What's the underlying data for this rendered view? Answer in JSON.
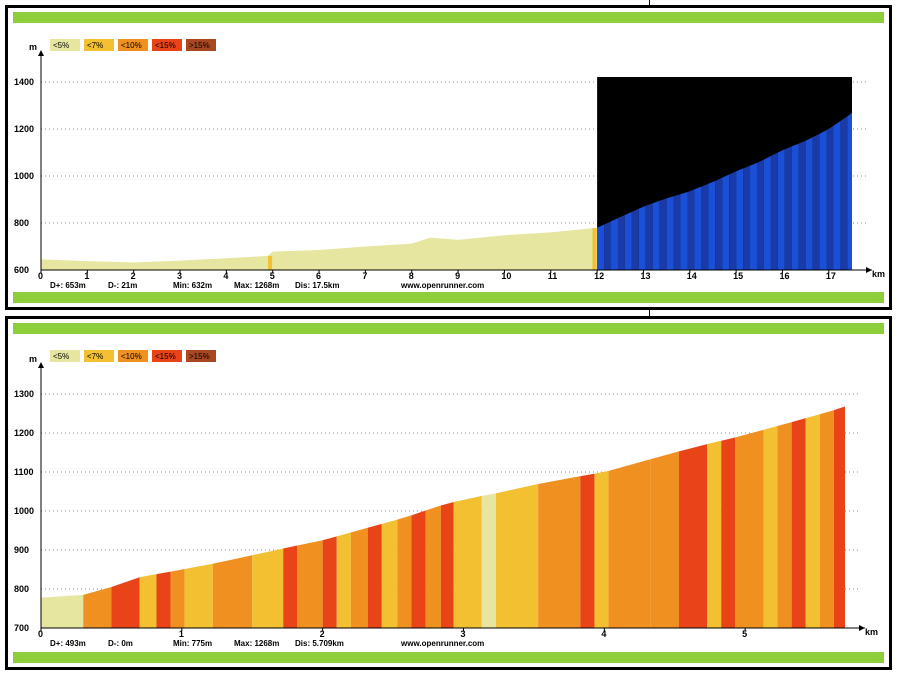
{
  "legend": [
    {
      "label": "<5%",
      "color": "#e6e6a0"
    },
    {
      "label": "<7%",
      "color": "#f2c030"
    },
    {
      "label": "<10%",
      "color": "#f09020"
    },
    {
      "label": "<15%",
      "color": "#e84418"
    },
    {
      "label": ">15%",
      "color": "#a84820"
    }
  ],
  "website": "www.openrunner.com",
  "chart_data": [
    {
      "type": "area",
      "y_unit": "m",
      "x_unit": "km",
      "ylim": [
        600,
        1400
      ],
      "yticks": [
        600,
        800,
        1000,
        1200,
        1400
      ],
      "xlim": [
        0,
        17.5
      ],
      "xticks": [
        0,
        1,
        2,
        3,
        4,
        5,
        6,
        7,
        8,
        9,
        10,
        11,
        12,
        13,
        14,
        15,
        16,
        17
      ],
      "stats": {
        "dplus": "D+: 653m",
        "dminus": "D-: 21m",
        "min": "Min: 632m",
        "max": "Max: 1268m",
        "dist": "Dis: 17.5km"
      },
      "profile": [
        [
          0,
          645
        ],
        [
          1,
          638
        ],
        [
          2,
          632
        ],
        [
          3,
          640
        ],
        [
          4,
          650
        ],
        [
          4.9,
          660
        ],
        [
          5,
          678
        ],
        [
          6,
          685
        ],
        [
          7,
          700
        ],
        [
          8,
          712
        ],
        [
          8.4,
          738
        ],
        [
          9,
          728
        ],
        [
          10,
          748
        ],
        [
          11,
          760
        ],
        [
          12,
          780
        ],
        [
          12.5,
          825
        ],
        [
          13,
          870
        ],
        [
          13.5,
          905
        ],
        [
          14,
          935
        ],
        [
          14.5,
          975
        ],
        [
          15,
          1020
        ],
        [
          15.5,
          1060
        ],
        [
          16,
          1110
        ],
        [
          16.5,
          1150
        ],
        [
          17,
          1200
        ],
        [
          17.5,
          1268
        ]
      ],
      "highlight": {
        "from": 12,
        "to": 17.5
      }
    },
    {
      "type": "area",
      "y_unit": "m",
      "x_unit": "km",
      "ylim": [
        700,
        1300
      ],
      "yticks": [
        700,
        800,
        900,
        1000,
        1100,
        1200,
        1300
      ],
      "xlim": [
        0,
        5.709
      ],
      "xticks": [
        0,
        1,
        2,
        3,
        4,
        5
      ],
      "stats": {
        "dplus": "D+: 493m",
        "dminus": "D-: 0m",
        "min": "Min: 775m",
        "max": "Max: 1268m",
        "dist": "Dis: 5.709km"
      },
      "profile": [
        [
          0,
          778
        ],
        [
          0.3,
          785
        ],
        [
          0.5,
          805
        ],
        [
          0.7,
          830
        ],
        [
          1,
          850
        ],
        [
          1.3,
          870
        ],
        [
          1.6,
          895
        ],
        [
          2,
          925
        ],
        [
          2.3,
          955
        ],
        [
          2.6,
          985
        ],
        [
          2.8,
          1010
        ],
        [
          3,
          1030
        ],
        [
          3.3,
          1050
        ],
        [
          3.6,
          1075
        ],
        [
          4,
          1100
        ],
        [
          4.3,
          1130
        ],
        [
          4.6,
          1160
        ],
        [
          5,
          1195
        ],
        [
          5.3,
          1225
        ],
        [
          5.6,
          1255
        ],
        [
          5.709,
          1268
        ]
      ],
      "segments": [
        [
          0,
          0.3,
          0
        ],
        [
          0.3,
          0.5,
          2
        ],
        [
          0.5,
          0.7,
          3
        ],
        [
          0.7,
          0.82,
          1
        ],
        [
          0.82,
          0.92,
          3
        ],
        [
          0.92,
          1.02,
          2
        ],
        [
          1.02,
          1.22,
          1
        ],
        [
          1.22,
          1.5,
          2
        ],
        [
          1.5,
          1.72,
          1
        ],
        [
          1.72,
          1.82,
          3
        ],
        [
          1.82,
          2.0,
          2
        ],
        [
          2.0,
          2.1,
          3
        ],
        [
          2.1,
          2.2,
          1
        ],
        [
          2.2,
          2.32,
          2
        ],
        [
          2.32,
          2.42,
          3
        ],
        [
          2.42,
          2.53,
          1
        ],
        [
          2.53,
          2.63,
          2
        ],
        [
          2.63,
          2.73,
          3
        ],
        [
          2.73,
          2.84,
          2
        ],
        [
          2.84,
          2.93,
          3
        ],
        [
          2.93,
          3.13,
          1
        ],
        [
          3.13,
          3.23,
          0
        ],
        [
          3.23,
          3.53,
          1
        ],
        [
          3.53,
          3.83,
          2
        ],
        [
          3.83,
          3.93,
          3
        ],
        [
          3.93,
          4.03,
          1
        ],
        [
          4.03,
          4.33,
          2
        ],
        [
          4.33,
          4.53,
          2
        ],
        [
          4.53,
          4.73,
          3
        ],
        [
          4.73,
          4.83,
          1
        ],
        [
          4.83,
          4.93,
          3
        ],
        [
          4.93,
          5.13,
          2
        ],
        [
          5.13,
          5.23,
          1
        ],
        [
          5.23,
          5.33,
          2
        ],
        [
          5.33,
          5.43,
          3
        ],
        [
          5.43,
          5.53,
          1
        ],
        [
          5.53,
          5.63,
          2
        ],
        [
          5.63,
          5.709,
          3
        ]
      ]
    }
  ]
}
